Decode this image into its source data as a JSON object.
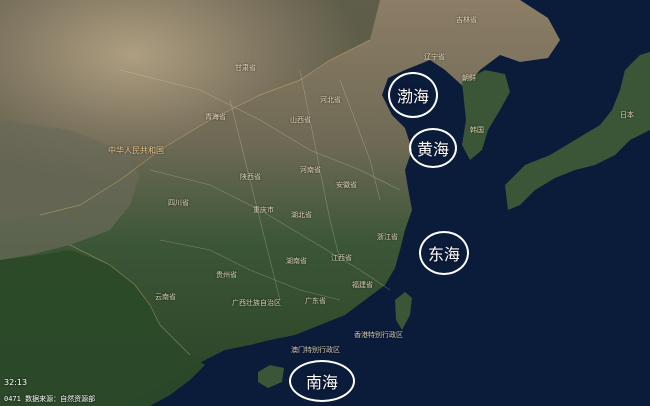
{
  "seas": [
    {
      "label": "渤海"
    },
    {
      "label": "黄海"
    },
    {
      "label": "东海"
    },
    {
      "label": "南海"
    }
  ],
  "regions": {
    "prc_label": "中华人民共和国",
    "hk_label": "香港特别行政区",
    "macau_label": "澳门特别行政区",
    "japan_label": "日本",
    "korea_label": "韩国",
    "nk_label": "朝鲜",
    "liaoning_label": "辽宁省",
    "jilin_label": "吉林省",
    "qinghai_label": "青海省",
    "sichuan_label": "四川省",
    "yunnan_label": "云南省",
    "guangxi_label": "广西壮族自治区",
    "guangdong_label": "广东省",
    "fujian_label": "福建省",
    "zhejiang_label": "浙江省",
    "jiangxi_label": "江西省",
    "hunan_label": "湖南省",
    "hubei_label": "湖北省",
    "henan_label": "河南省",
    "anhui_label": "安徽省",
    "shaanxi_label": "陕西省",
    "shanxi_label": "山西省",
    "hebei_label": "河北省",
    "gansu_label": "甘肃省",
    "guizhou_label": "贵州省",
    "chongqing_label": "重庆市"
  },
  "footer": {
    "time": "32:13",
    "source_prefix": "0471",
    "source": "数据来源：自然资源部"
  },
  "colors": {
    "circle": "#ffffff",
    "sea": "#0b1b3a",
    "land_dark": "#2f4a2a",
    "land_light": "#9a8a6f"
  }
}
